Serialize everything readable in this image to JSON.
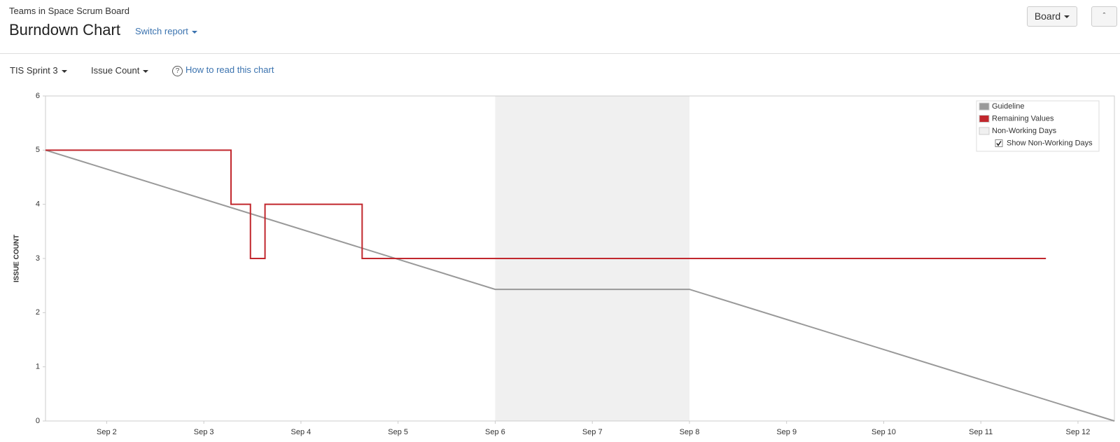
{
  "header": {
    "breadcrumb": "Teams in Space Scrum Board",
    "title": "Burndown Chart",
    "switch_report": "Switch report",
    "board_button": "Board"
  },
  "toolbar": {
    "sprint": "TIS Sprint 3",
    "estimation": "Issue Count",
    "help": "How to read this chart"
  },
  "chart_data": {
    "type": "line",
    "y_label": "ISSUE COUNT",
    "xlim": [
      1.37,
      12.375
    ],
    "ylim": [
      0,
      6
    ],
    "xticks": [
      {
        "value": 2,
        "label": "Sep 2"
      },
      {
        "value": 3,
        "label": "Sep 3"
      },
      {
        "value": 4,
        "label": "Sep 4"
      },
      {
        "value": 5,
        "label": "Sep 5"
      },
      {
        "value": 6,
        "label": "Sep 6"
      },
      {
        "value": 7,
        "label": "Sep 7"
      },
      {
        "value": 8,
        "label": "Sep 8"
      },
      {
        "value": 9,
        "label": "Sep 9"
      },
      {
        "value": 10,
        "label": "Sep 10"
      },
      {
        "value": 11,
        "label": "Sep 11"
      },
      {
        "value": 12,
        "label": "Sep 12"
      }
    ],
    "yticks": [
      0,
      1,
      2,
      3,
      4,
      5,
      6
    ],
    "non_working_days": {
      "name": "Non-Working Days",
      "color": "#f0f0f0",
      "range": [
        6,
        8
      ]
    },
    "series": [
      {
        "name": "Guideline",
        "color": "#999999",
        "x": [
          1.37,
          6,
          8,
          12.375
        ],
        "values": [
          5,
          2.43,
          2.43,
          0
        ]
      },
      {
        "name": "Remaining Values",
        "color": "#c1272d",
        "x": [
          1.37,
          3.28,
          3.28,
          3.48,
          3.48,
          3.63,
          3.63,
          4.63,
          4.63,
          11.67
        ],
        "values": [
          5,
          5,
          4,
          4,
          3,
          3,
          4,
          4,
          3,
          3
        ]
      }
    ],
    "legend_position": "upper right",
    "show_non_working_label": "Show Non-Working Days"
  }
}
